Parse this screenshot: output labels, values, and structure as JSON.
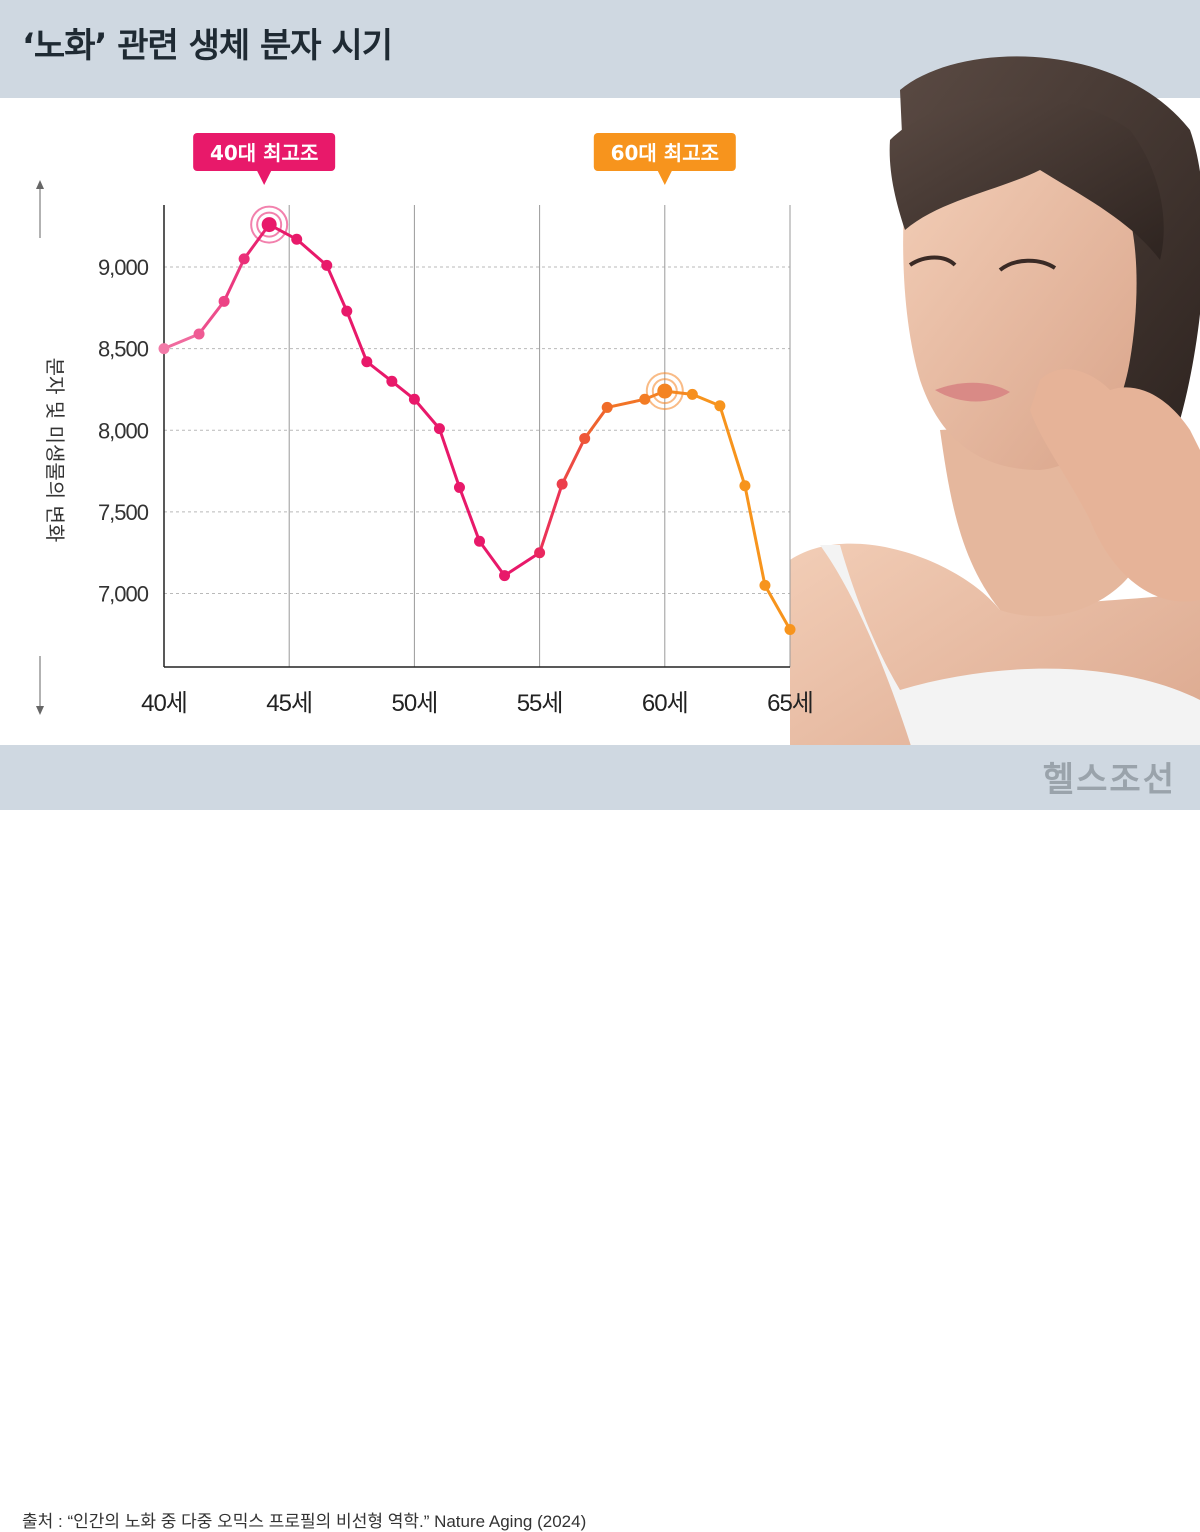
{
  "title": "‘노화’ 관련 생체 분자 시기",
  "source": "출처 : “인간의 노화 중 다중 오믹스 프로필의 비선형 역학.” Nature Aging (2024)",
  "brand": "헬스조선",
  "colors": {
    "header_bg": "#cfd8e1",
    "peak40": "#e8196a",
    "peak60": "#f7941d",
    "grid": "#b9b9b9"
  },
  "callouts": [
    {
      "text": "40대 최고조",
      "color": "#e8196a",
      "x": 44
    },
    {
      "text": "60대 최고조",
      "color": "#f7941d",
      "x": 60
    }
  ],
  "chart_data": {
    "type": "line",
    "title": "‘노화’ 관련 생체 분자 시기",
    "ylabel": "분자 및 미생물의 변화",
    "xlabel": "",
    "x_ticks": [
      "40세",
      "45세",
      "50세",
      "55세",
      "60세",
      "65세"
    ],
    "x_tick_values": [
      40,
      45,
      50,
      55,
      60,
      65
    ],
    "y_ticks": [
      "9,000",
      "8,500",
      "8,000",
      "7,500",
      "7,000"
    ],
    "y_tick_values": [
      9000,
      8500,
      8000,
      7500,
      7000
    ],
    "xlim": [
      40,
      65
    ],
    "ylim": [
      6550,
      9380
    ],
    "grid": true,
    "series": [
      {
        "values": [
          {
            "x": 40.0,
            "y": 8500
          },
          {
            "x": 41.4,
            "y": 8590
          },
          {
            "x": 42.4,
            "y": 8790
          },
          {
            "x": 43.2,
            "y": 9050
          },
          {
            "x": 44.2,
            "y": 9260
          },
          {
            "x": 45.3,
            "y": 9170
          },
          {
            "x": 46.5,
            "y": 9010
          },
          {
            "x": 47.3,
            "y": 8730
          },
          {
            "x": 48.1,
            "y": 8420
          },
          {
            "x": 49.1,
            "y": 8300
          },
          {
            "x": 50.0,
            "y": 8190
          },
          {
            "x": 51.0,
            "y": 8010
          },
          {
            "x": 51.8,
            "y": 7650
          },
          {
            "x": 52.6,
            "y": 7320
          },
          {
            "x": 53.6,
            "y": 7110
          },
          {
            "x": 55.0,
            "y": 7250
          },
          {
            "x": 55.9,
            "y": 7670
          },
          {
            "x": 56.8,
            "y": 7950
          },
          {
            "x": 57.7,
            "y": 8140
          },
          {
            "x": 59.2,
            "y": 8190
          },
          {
            "x": 60.0,
            "y": 8240
          },
          {
            "x": 61.1,
            "y": 8220
          },
          {
            "x": 62.2,
            "y": 8150
          },
          {
            "x": 63.2,
            "y": 7660
          },
          {
            "x": 64.0,
            "y": 7050
          },
          {
            "x": 65.0,
            "y": 6780
          }
        ]
      }
    ],
    "peaks": [
      {
        "x": 44.2,
        "y": 9260,
        "label": "40대 최고조"
      },
      {
        "x": 60.0,
        "y": 8240,
        "label": "60대 최고조"
      }
    ]
  }
}
